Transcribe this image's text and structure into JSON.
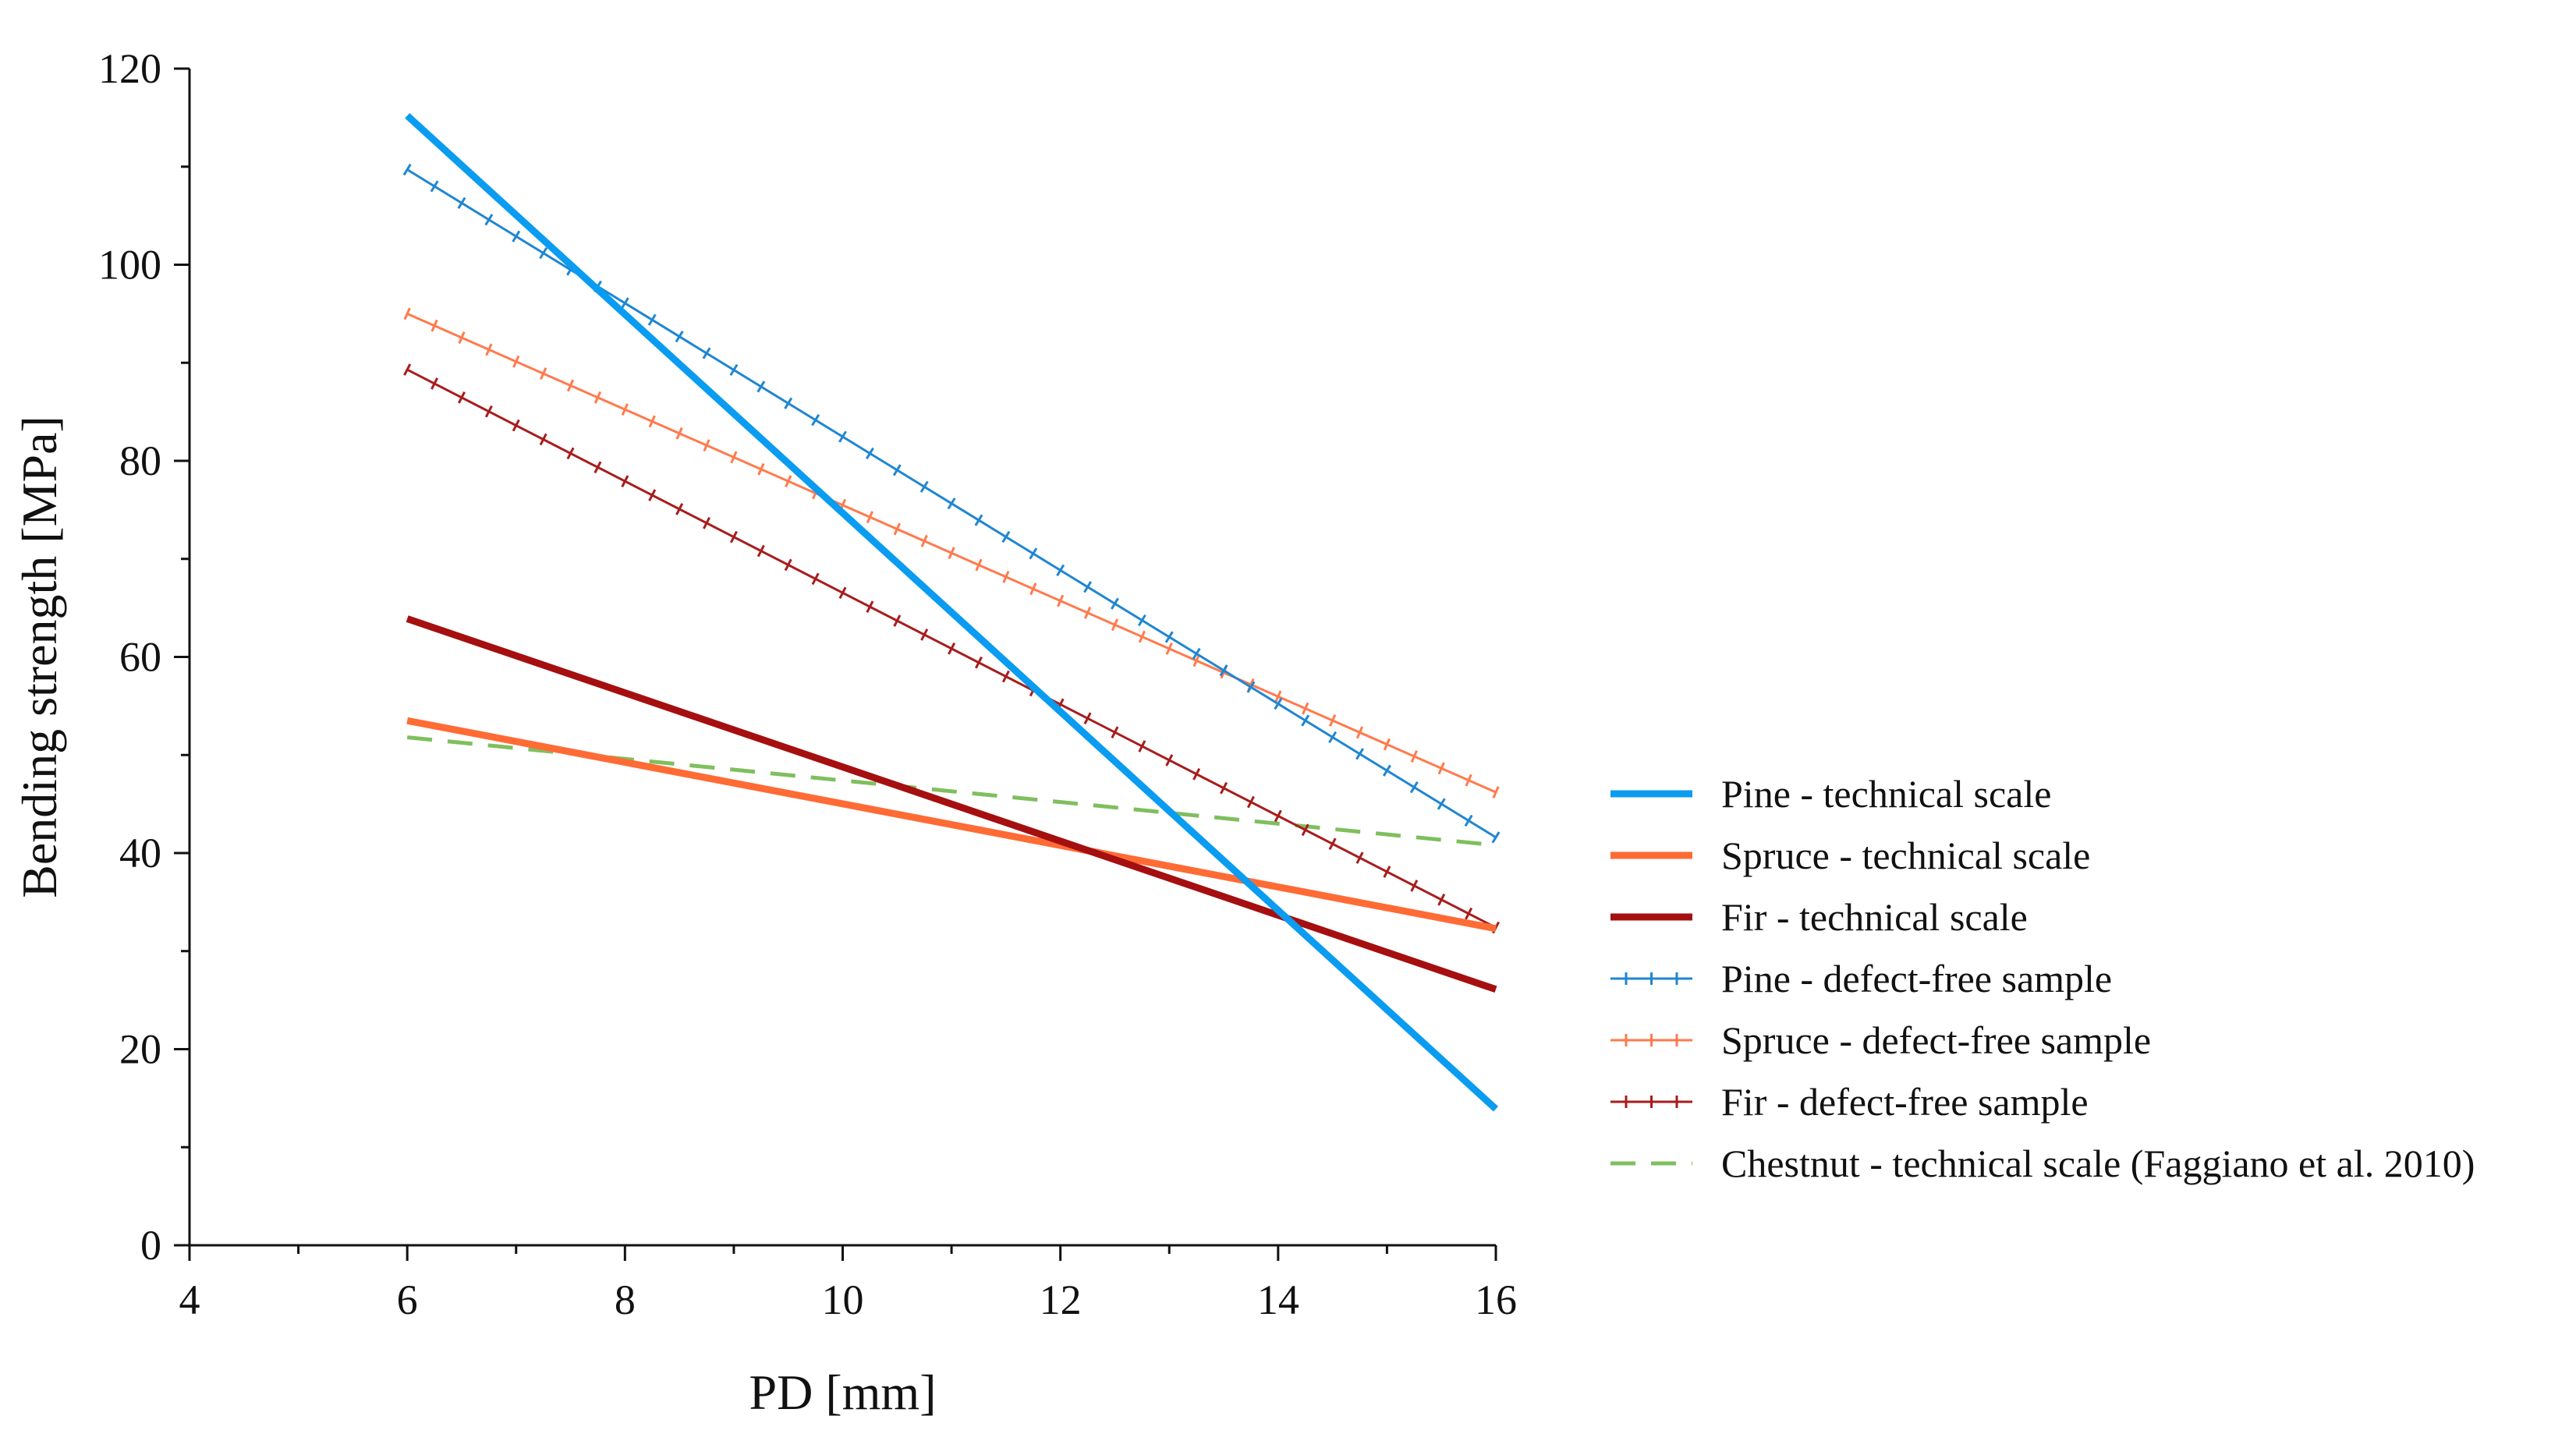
{
  "chart_data": {
    "type": "line",
    "title": "",
    "xlabel": "PD [mm]",
    "ylabel": "Bending strength [MPa]",
    "xlim": [
      4,
      16
    ],
    "ylim": [
      0,
      120
    ],
    "xticks": [
      4,
      6,
      8,
      10,
      12,
      14,
      16
    ],
    "yticks": [
      0,
      20,
      40,
      60,
      80,
      100,
      120
    ],
    "grid": false,
    "legend_position": "right",
    "series": [
      {
        "name": "Pine - technical scale",
        "style": "thick",
        "color": "#0a9cf0",
        "x": [
          6,
          16
        ],
        "y": [
          115.2,
          13.9
        ]
      },
      {
        "name": "Spruce - technical scale",
        "style": "thick",
        "color": "#ff6b35",
        "x": [
          6,
          16
        ],
        "y": [
          53.5,
          32.3
        ]
      },
      {
        "name": "Fir - technical scale",
        "style": "thick",
        "color": "#a50f10",
        "x": [
          6,
          16
        ],
        "y": [
          63.9,
          26.1
        ]
      },
      {
        "name": "Pine - defect-free sample",
        "style": "marker",
        "color": "#1f86d2",
        "x": [
          6,
          16
        ],
        "y": [
          109.7,
          41.6
        ]
      },
      {
        "name": "Spruce - defect-free sample",
        "style": "marker",
        "color": "#ff7a4d",
        "x": [
          6,
          16
        ],
        "y": [
          95.0,
          46.2
        ]
      },
      {
        "name": "Fir - defect-free sample",
        "style": "marker",
        "color": "#a81c1c",
        "x": [
          6,
          16
        ],
        "y": [
          89.3,
          32.4
        ]
      },
      {
        "name": "Chestnut - technical scale (Faggiano et al. 2010)",
        "style": "dashed",
        "color": "#7fbf5e",
        "x": [
          6,
          16
        ],
        "y": [
          51.8,
          40.8
        ]
      }
    ]
  }
}
